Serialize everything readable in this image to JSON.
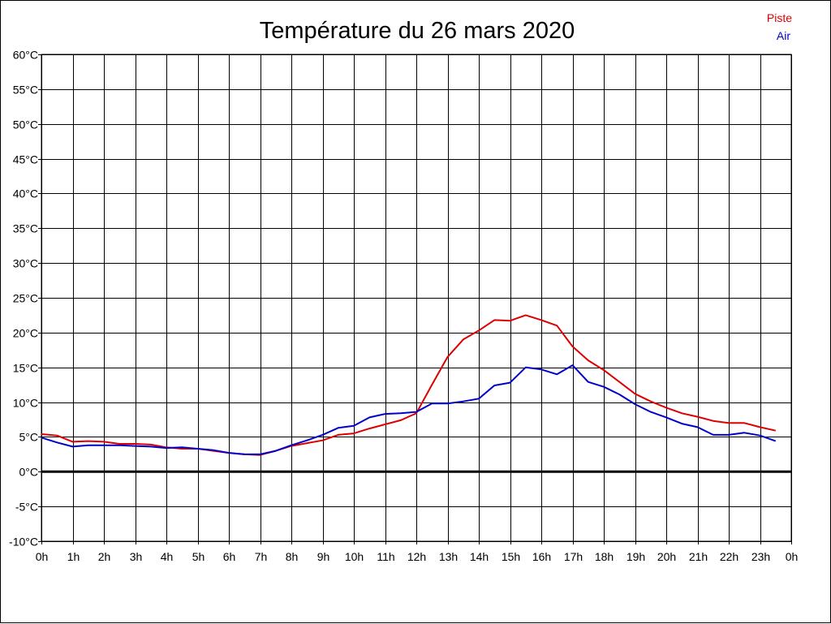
{
  "chart_data": {
    "type": "line",
    "title": "Température du 26 mars 2020",
    "xlabel": "",
    "ylabel": "",
    "x_tick_labels": [
      "0h",
      "1h",
      "2h",
      "3h",
      "4h",
      "5h",
      "6h",
      "7h",
      "8h",
      "9h",
      "10h",
      "11h",
      "12h",
      "13h",
      "14h",
      "15h",
      "16h",
      "17h",
      "18h",
      "19h",
      "20h",
      "21h",
      "22h",
      "23h",
      "0h"
    ],
    "y_tick_labels": [
      "60°C",
      "55°C",
      "50°C",
      "45°C",
      "40°C",
      "35°C",
      "30°C",
      "25°C",
      "20°C",
      "15°C",
      "10°C",
      "5°C",
      "0°C",
      "-5°C",
      "-10°C"
    ],
    "xlim": [
      0,
      24
    ],
    "ylim": [
      -10,
      60
    ],
    "grid": true,
    "legend_position": "top-right",
    "x": [
      0,
      0.5,
      1,
      1.5,
      2,
      2.5,
      3,
      3.5,
      4,
      4.5,
      5,
      5.5,
      6,
      6.5,
      7,
      7.5,
      8,
      8.5,
      9,
      9.5,
      10,
      10.5,
      11,
      11.5,
      12,
      12.5,
      13,
      13.5,
      14,
      14.5,
      15,
      15.5,
      16,
      16.5,
      17,
      17.5,
      18,
      18.5,
      19,
      19.5,
      20,
      20.5,
      21,
      21.5,
      22,
      22.5,
      23,
      23.5
    ],
    "series": [
      {
        "name": "Piste",
        "color": "#dd0000",
        "values": [
          5.4,
          5.2,
          4.3,
          4.4,
          4.3,
          4.0,
          4.0,
          3.9,
          3.5,
          3.3,
          3.3,
          3.0,
          2.7,
          2.5,
          2.4,
          3.0,
          3.7,
          4.1,
          4.5,
          5.3,
          5.5,
          6.2,
          6.8,
          7.4,
          8.4,
          12.5,
          16.5,
          19.0,
          20.3,
          21.8,
          21.7,
          22.5,
          21.8,
          21.0,
          18.0,
          16.0,
          14.6,
          12.9,
          11.2,
          10.1,
          9.2,
          8.4,
          7.9,
          7.3,
          7.0,
          7.0,
          6.4,
          5.9
        ]
      },
      {
        "name": "Air",
        "color": "#0000cc",
        "values": [
          4.9,
          4.2,
          3.6,
          3.8,
          3.8,
          3.8,
          3.7,
          3.6,
          3.4,
          3.5,
          3.3,
          3.1,
          2.7,
          2.5,
          2.5,
          3.0,
          3.8,
          4.5,
          5.3,
          6.3,
          6.6,
          7.8,
          8.3,
          8.4,
          8.6,
          9.8,
          9.8,
          10.1,
          10.5,
          12.4,
          12.8,
          15.0,
          14.7,
          14.0,
          15.3,
          12.9,
          12.2,
          11.1,
          9.7,
          8.6,
          7.8,
          6.9,
          6.4,
          5.3,
          5.3,
          5.6,
          5.2,
          4.4
        ]
      }
    ]
  }
}
